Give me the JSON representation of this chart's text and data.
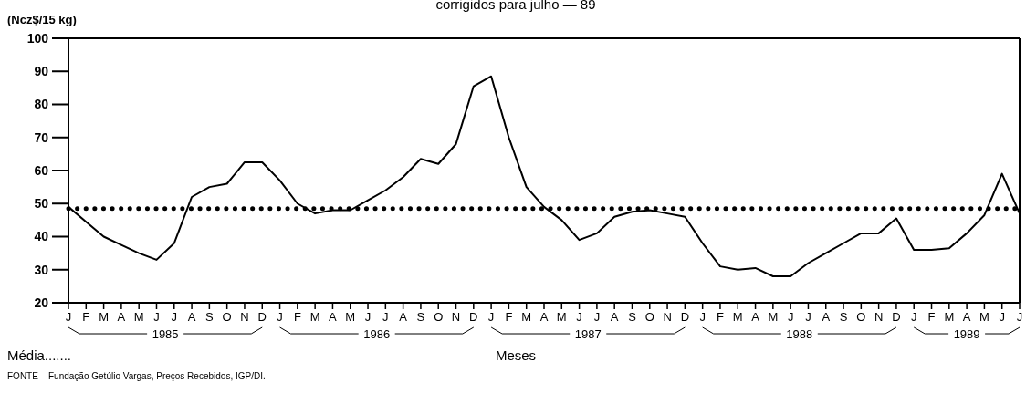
{
  "chart_data": {
    "type": "line",
    "title": "corrigidos para julho — 89",
    "ylabel": "(Ncz$/15 kg)",
    "xlabel": "Meses",
    "categories": [
      "J",
      "F",
      "M",
      "A",
      "M",
      "J",
      "J",
      "A",
      "S",
      "O",
      "N",
      "D",
      "J",
      "F",
      "M",
      "A",
      "M",
      "J",
      "J",
      "A",
      "S",
      "O",
      "N",
      "D",
      "J",
      "F",
      "M",
      "A",
      "M",
      "J",
      "J",
      "A",
      "S",
      "O",
      "N",
      "D",
      "J",
      "F",
      "M",
      "A",
      "M",
      "J",
      "J",
      "A",
      "S",
      "O",
      "N",
      "D",
      "J",
      "F",
      "M",
      "A",
      "M",
      "J",
      "J"
    ],
    "series": [
      {
        "color": "#000000",
        "values": [
          49,
          44.5,
          40,
          37.5,
          35,
          33,
          38,
          52,
          55,
          56,
          62.5,
          62.5,
          57,
          50,
          47,
          48,
          48,
          51,
          54,
          58,
          63.5,
          62,
          68,
          85.5,
          88.5,
          70,
          55,
          49,
          45,
          39,
          41,
          46,
          47.5,
          48,
          47,
          46,
          38,
          31,
          30,
          30.5,
          28,
          28,
          32,
          35,
          38,
          41,
          41,
          45.5,
          36,
          36,
          36.5,
          41,
          46.5,
          59,
          47
        ]
      }
    ],
    "ylim": [
      20,
      100
    ],
    "yticks": [
      20,
      30,
      40,
      50,
      60,
      70,
      80,
      90,
      100
    ],
    "grid": false,
    "ref_lines": [
      {
        "axis": "y",
        "value": 48.5,
        "label": "Média.......",
        "line_style": "dotted"
      }
    ],
    "annotations": [
      "1985",
      "1986",
      "1987",
      "1988",
      "1989",
      "FONTE – Fundação Getúlio Vargas, Preços Recebidos, IGP/DI."
    ]
  }
}
